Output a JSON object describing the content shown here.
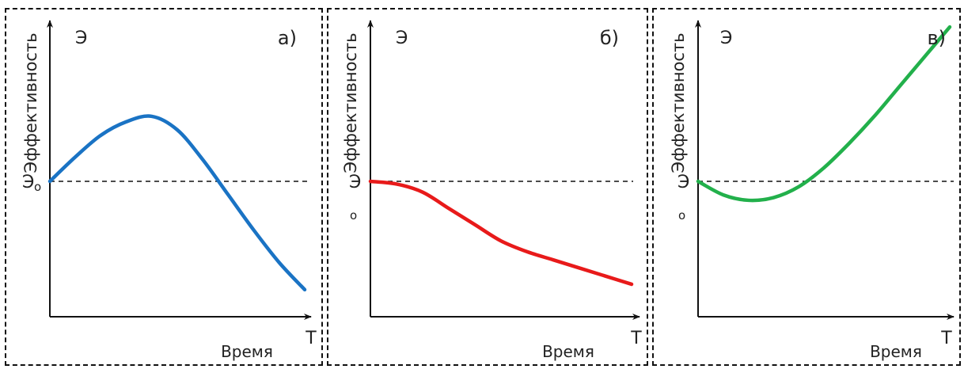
{
  "chart_data": [
    {
      "type": "line",
      "panel_label": "а)",
      "xlabel": "Время",
      "ylabel": "Эффективность",
      "x_axis_letter": "Т",
      "y_axis_letter": "Э",
      "baseline_label": "Э",
      "baseline_sub": "о",
      "baseline_value": 0.5,
      "xlim": [
        0,
        1
      ],
      "ylim": [
        0,
        1
      ],
      "series": [
        {
          "color": "#1a73c4",
          "x": [
            0,
            0.1,
            0.2,
            0.3,
            0.4,
            0.5,
            0.6,
            0.7,
            0.8,
            0.9,
            1.0
          ],
          "y": [
            0.5,
            0.59,
            0.67,
            0.72,
            0.74,
            0.69,
            0.58,
            0.45,
            0.32,
            0.2,
            0.1
          ]
        }
      ]
    },
    {
      "type": "line",
      "panel_label": "б)",
      "xlabel": "Время",
      "ylabel": "Эффективность",
      "x_axis_letter": "Т",
      "y_axis_letter": "Э",
      "baseline_label": "Э",
      "baseline_sub": "о",
      "baseline_value": 0.5,
      "xlim": [
        0,
        1
      ],
      "ylim": [
        0,
        1
      ],
      "series": [
        {
          "color": "#e81a1a",
          "x": [
            0,
            0.1,
            0.2,
            0.3,
            0.4,
            0.5,
            0.6,
            0.7,
            0.8,
            0.9,
            1.0
          ],
          "y": [
            0.5,
            0.49,
            0.46,
            0.4,
            0.34,
            0.28,
            0.24,
            0.21,
            0.18,
            0.15,
            0.12
          ]
        }
      ]
    },
    {
      "type": "line",
      "panel_label": "в)",
      "xlabel": "Время",
      "ylabel": "Эффективность",
      "x_axis_letter": "Т",
      "y_axis_letter": "Э",
      "baseline_label": "Э",
      "baseline_sub": "о",
      "baseline_value": 0.5,
      "xlim": [
        0,
        1
      ],
      "ylim": [
        0,
        1
      ],
      "series": [
        {
          "color": "#22b04b",
          "x": [
            0,
            0.1,
            0.2,
            0.3,
            0.4,
            0.5,
            0.6,
            0.7,
            0.8,
            0.9,
            1.0
          ],
          "y": [
            0.5,
            0.45,
            0.43,
            0.44,
            0.48,
            0.55,
            0.64,
            0.74,
            0.85,
            0.96,
            1.07
          ]
        }
      ]
    }
  ]
}
